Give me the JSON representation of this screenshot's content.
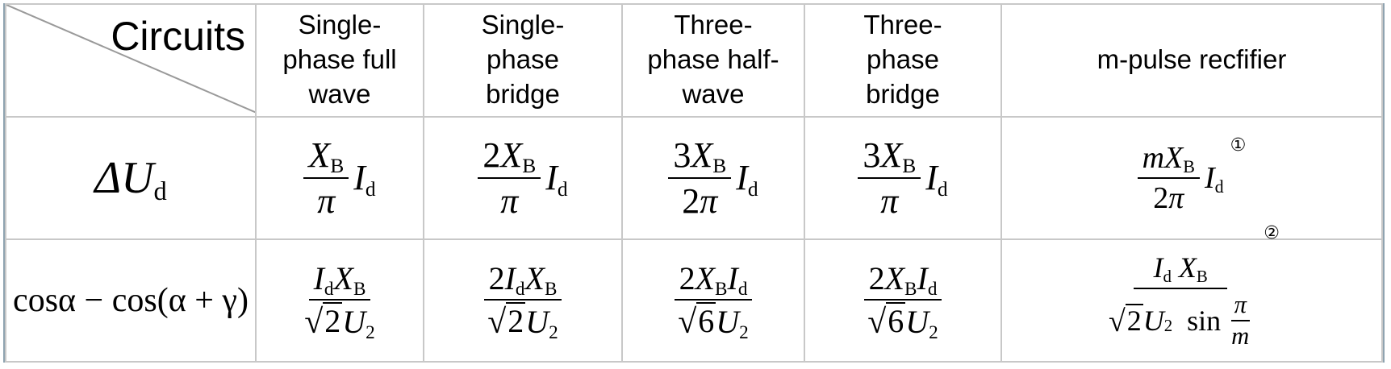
{
  "header": {
    "corner_label": "Circuits",
    "col1_line1": "Single-",
    "col1_line2": "phase full",
    "col1_line3": "wave",
    "col2_line1": "Single-",
    "col2_line2": "phase",
    "col2_line3": "bridge",
    "col3_line1": "Three-",
    "col3_line2": "phase half-",
    "col3_line3": "wave",
    "col4_line1": "Three-",
    "col4_line2": "phase",
    "col4_line3": "bridge",
    "col5": "m-pulse recfifier"
  },
  "rows": {
    "delta_ud": {
      "label_delta": "ΔU",
      "label_sub": "d"
    },
    "cos_expr": {
      "label": "cosα − cos(α + γ)"
    }
  },
  "notes": {
    "note1": "①",
    "note2": "②"
  }
}
